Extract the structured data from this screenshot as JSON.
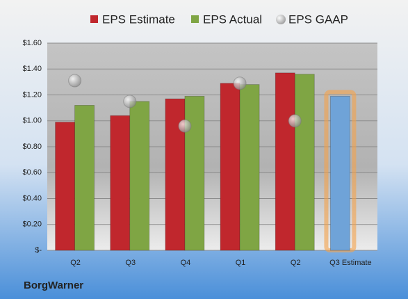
{
  "chart_data": {
    "type": "bar",
    "categories": [
      "Q2",
      "Q3",
      "Q4",
      "Q1",
      "Q2",
      "Q3 Estimate"
    ],
    "series": [
      {
        "name": "EPS Estimate",
        "color": "#c0272d",
        "forecast_color": "#6fa3d8",
        "values": [
          0.99,
          1.04,
          1.17,
          1.29,
          1.37,
          1.19
        ]
      },
      {
        "name": "EPS Actual",
        "color": "#7fa544",
        "values": [
          1.12,
          1.15,
          1.19,
          1.28,
          1.36,
          null
        ]
      },
      {
        "name": "EPS GAAP",
        "color": "#9a9a9a",
        "values": [
          1.31,
          1.15,
          0.96,
          1.29,
          1.0,
          null
        ]
      }
    ],
    "ylim": [
      0,
      1.6
    ],
    "yticks": [
      {
        "value": 0,
        "label": "$-"
      },
      {
        "value": 0.2,
        "label": "$0.20"
      },
      {
        "value": 0.4,
        "label": "$0.40"
      },
      {
        "value": 0.6,
        "label": "$0.60"
      },
      {
        "value": 0.8,
        "label": "$0.80"
      },
      {
        "value": 1.0,
        "label": "$1.00"
      },
      {
        "value": 1.2,
        "label": "$1.20"
      },
      {
        "value": 1.4,
        "label": "$1.40"
      },
      {
        "value": 1.6,
        "label": "$1.60"
      }
    ],
    "grid": true,
    "legend": "top",
    "footer": "BorgWarner"
  }
}
